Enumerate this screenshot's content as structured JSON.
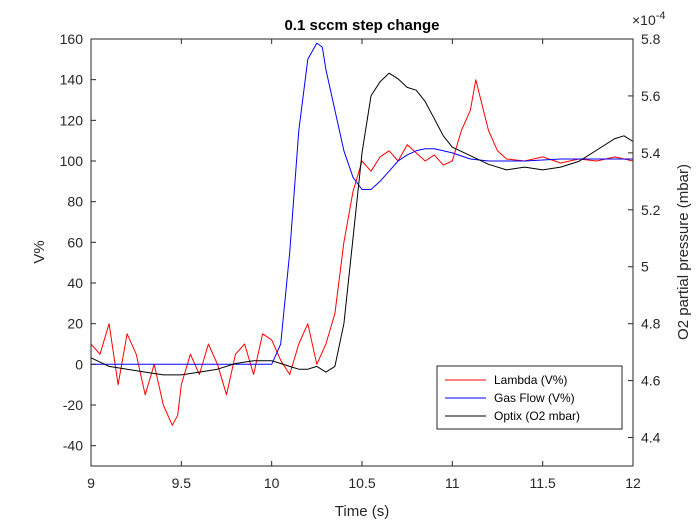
{
  "chart_data": {
    "type": "line",
    "title": "0.1 sccm step change",
    "xlabel": "Time (s)",
    "ylabel_left": "V%",
    "ylabel_right": "O2 partial pressure (mbar)",
    "exponent_label": "×10",
    "exponent_power": "-4",
    "xlim": [
      9,
      12
    ],
    "ylim_left": [
      -50,
      160
    ],
    "ylim_right": [
      4.3,
      5.8
    ],
    "x_ticks": [
      "9",
      "9.5",
      "10",
      "10.5",
      "11",
      "11.5",
      "12"
    ],
    "y_left_ticks": [
      "-40",
      "-20",
      "0",
      "20",
      "40",
      "60",
      "80",
      "100",
      "120",
      "140",
      "160"
    ],
    "y_right_ticks": [
      "4.4",
      "4.6",
      "4.8",
      "5",
      "5.2",
      "5.4",
      "5.6",
      "5.8"
    ],
    "grid": false,
    "legend_position": "bottom-right",
    "series": [
      {
        "name": "Lambda (V%)",
        "axis": "left",
        "color": "#ff0000",
        "x": [
          9.0,
          9.05,
          9.1,
          9.15,
          9.2,
          9.25,
          9.3,
          9.35,
          9.4,
          9.45,
          9.48,
          9.5,
          9.55,
          9.6,
          9.65,
          9.7,
          9.75,
          9.8,
          9.85,
          9.9,
          9.95,
          10.0,
          10.05,
          10.1,
          10.15,
          10.2,
          10.25,
          10.3,
          10.35,
          10.4,
          10.45,
          10.5,
          10.55,
          10.6,
          10.65,
          10.7,
          10.75,
          10.8,
          10.85,
          10.9,
          10.95,
          11.0,
          11.05,
          11.1,
          11.13,
          11.2,
          11.25,
          11.3,
          11.4,
          11.5,
          11.6,
          11.7,
          11.8,
          11.9,
          12.0
        ],
        "y": [
          10,
          5,
          20,
          -10,
          15,
          5,
          -15,
          0,
          -20,
          -30,
          -25,
          -10,
          5,
          -5,
          10,
          0,
          -15,
          5,
          10,
          -5,
          15,
          12,
          2,
          -5,
          10,
          20,
          0,
          10,
          25,
          60,
          85,
          100,
          95,
          102,
          105,
          100,
          108,
          104,
          100,
          103,
          98,
          100,
          115,
          125,
          140,
          115,
          105,
          101,
          100,
          102,
          99,
          101,
          100,
          102,
          100
        ]
      },
      {
        "name": "Gas Flow (V%)",
        "axis": "left",
        "color": "#0000ff",
        "x": [
          9.0,
          9.5,
          9.9,
          10.0,
          10.05,
          10.1,
          10.15,
          10.2,
          10.25,
          10.28,
          10.3,
          10.35,
          10.4,
          10.45,
          10.5,
          10.55,
          10.6,
          10.65,
          10.7,
          10.75,
          10.8,
          10.85,
          10.9,
          10.95,
          11.0,
          11.1,
          11.2,
          11.4,
          11.6,
          11.8,
          12.0
        ],
        "y": [
          0,
          0,
          0,
          0,
          10,
          55,
          115,
          150,
          158,
          156,
          145,
          125,
          105,
          92,
          86,
          86,
          90,
          95,
          100,
          103,
          105,
          106,
          106,
          105,
          104,
          101,
          100,
          100,
          101,
          101,
          101
        ]
      },
      {
        "name": "Optix (O2 mbar)",
        "axis": "right",
        "color": "#000000",
        "x": [
          9.0,
          9.1,
          9.2,
          9.3,
          9.4,
          9.5,
          9.6,
          9.7,
          9.8,
          9.9,
          10.0,
          10.05,
          10.1,
          10.15,
          10.2,
          10.25,
          10.3,
          10.35,
          10.4,
          10.45,
          10.5,
          10.55,
          10.6,
          10.65,
          10.7,
          10.75,
          10.8,
          10.85,
          10.9,
          10.95,
          11.0,
          11.1,
          11.2,
          11.3,
          11.4,
          11.5,
          11.6,
          11.7,
          11.8,
          11.9,
          11.95,
          12.0
        ],
        "y": [
          4.68,
          4.65,
          4.64,
          4.63,
          4.62,
          4.62,
          4.63,
          4.64,
          4.66,
          4.67,
          4.67,
          4.66,
          4.65,
          4.64,
          4.64,
          4.65,
          4.63,
          4.65,
          4.8,
          5.1,
          5.4,
          5.6,
          5.65,
          5.68,
          5.66,
          5.63,
          5.62,
          5.58,
          5.52,
          5.46,
          5.42,
          5.39,
          5.36,
          5.34,
          5.35,
          5.34,
          5.35,
          5.37,
          5.41,
          5.45,
          5.46,
          5.44
        ]
      }
    ]
  }
}
